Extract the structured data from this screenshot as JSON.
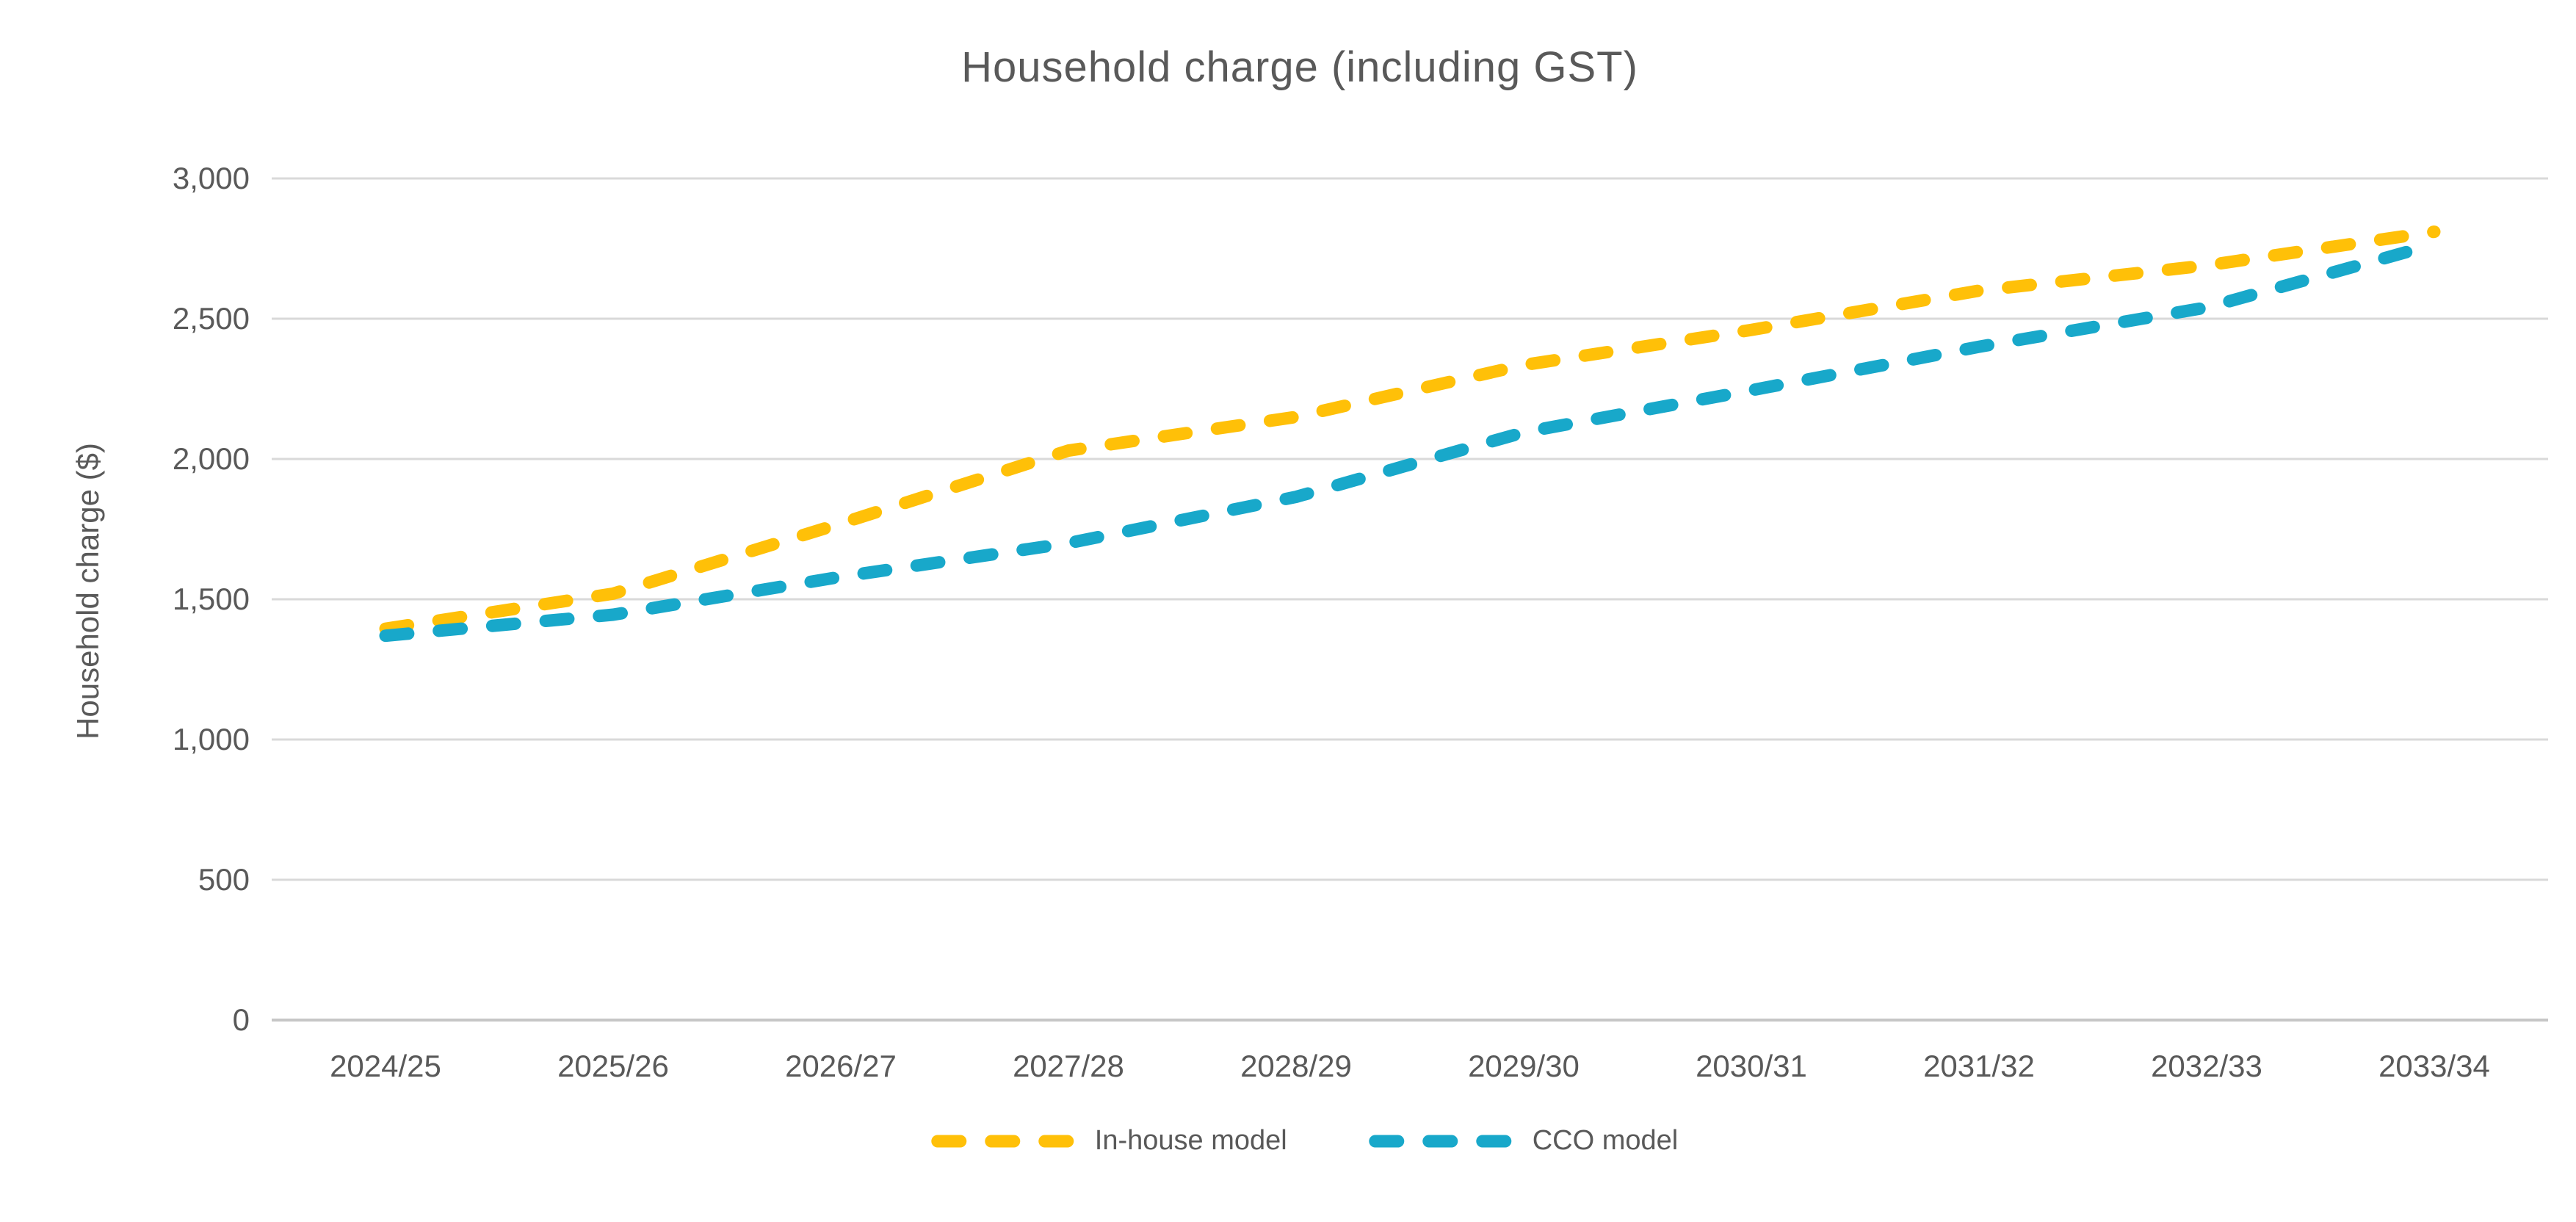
{
  "chart_data": {
    "type": "line",
    "title": "Household charge (including GST)",
    "ylabel": "Household charge ($)",
    "xlabel": "",
    "categories": [
      "2024/25",
      "2025/26",
      "2026/27",
      "2027/28",
      "2028/29",
      "2029/30",
      "2030/31",
      "2031/32",
      "2032/33",
      "2033/34"
    ],
    "series": [
      {
        "name": "In-house model",
        "color": "#FFC008",
        "line_style": "dashed",
        "values": [
          1395,
          1520,
          1770,
          2030,
          2150,
          2335,
          2460,
          2600,
          2690,
          2810
        ]
      },
      {
        "name": "CCO model",
        "color": "#18A8CA",
        "line_style": "dashed",
        "values": [
          1370,
          1445,
          1580,
          1700,
          1865,
          2095,
          2245,
          2400,
          2540,
          2765
        ]
      }
    ],
    "ylim": [
      0,
      3000
    ],
    "ytick_step": 500,
    "ytick_labels": [
      "0",
      "500",
      "1,000",
      "1,500",
      "2,000",
      "2,500",
      "3,000"
    ],
    "grid": "horizontal",
    "legend_position": "bottom"
  },
  "colors": {
    "text": "#595959",
    "gridline": "#D9D9D9",
    "axis_line": "#C6C6C6",
    "background": "#FFFFFF"
  }
}
